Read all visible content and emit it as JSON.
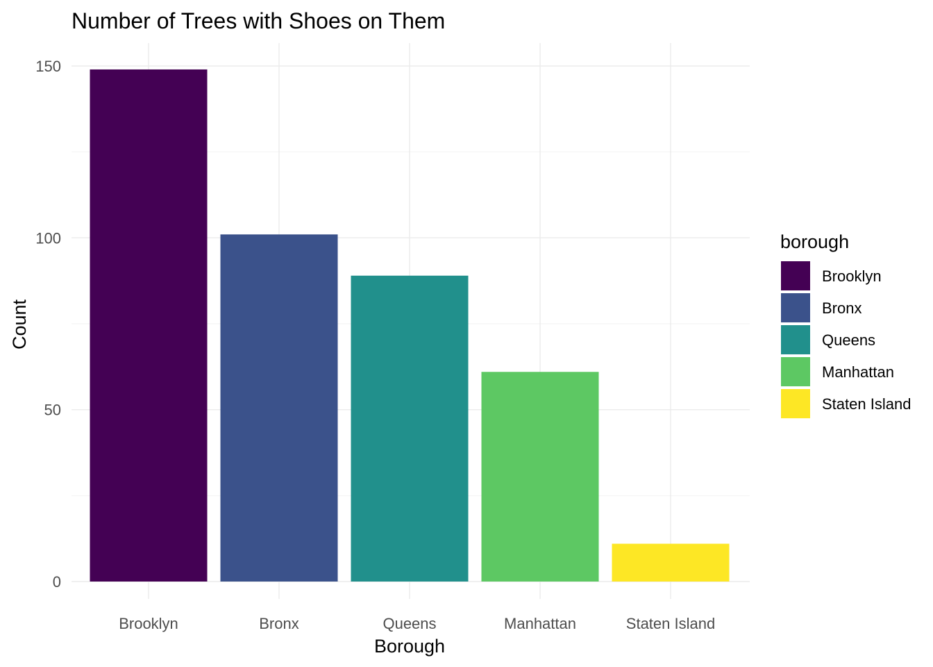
{
  "chart_data": {
    "type": "bar",
    "title": "Number of Trees with Shoes on Them",
    "xlabel": "Borough",
    "ylabel": "Count",
    "categories": [
      "Brooklyn",
      "Bronx",
      "Queens",
      "Manhattan",
      "Staten Island"
    ],
    "values": [
      149,
      101,
      89,
      61,
      11
    ],
    "colors": [
      "#440154",
      "#3B528B",
      "#21908C",
      "#5DC863",
      "#FDE725"
    ],
    "ylim": [
      0,
      150
    ],
    "yticks": [
      0,
      50,
      100,
      150
    ],
    "grid": true,
    "legend": {
      "title": "borough",
      "placement": "right",
      "entries": [
        "Brooklyn",
        "Bronx",
        "Queens",
        "Manhattan",
        "Staten Island"
      ]
    }
  }
}
